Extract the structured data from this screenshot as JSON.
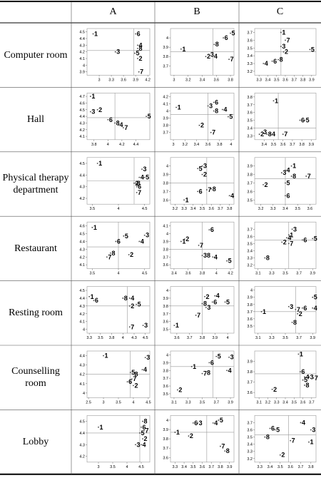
{
  "table": {
    "header": [
      "A",
      "B",
      "C"
    ],
    "rows": [
      "Computer room",
      "Hall",
      "Physical therapy department",
      "Restaurant",
      "Resting room",
      "Counselling room",
      "Lobby"
    ]
  },
  "chart_data": [
    {
      "type": "scatter",
      "labels": [
        "1",
        "2",
        "3",
        "4",
        "5",
        "6",
        "7",
        "8"
      ],
      "x": [
        2.85,
        3.95,
        3.4,
        3.95,
        3.88,
        3.9,
        3.98,
        3.95
      ],
      "values": [
        4.47,
        4.1,
        4.2,
        4.3,
        4.18,
        4.47,
        3.9,
        4.25
      ],
      "xlim": [
        2.7,
        4.25
      ],
      "ylim": [
        3.85,
        4.55
      ],
      "xticks": [
        3.0,
        3.3,
        3.6,
        3.9,
        4.2
      ],
      "yticks": [
        3.9,
        4.0,
        4.1,
        4.2,
        4.3,
        4.4,
        4.5
      ],
      "vline": 3.85,
      "hline": 4.22
    },
    {
      "type": "scatter",
      "labels": [
        "1",
        "2",
        "3",
        "4",
        "5",
        "6",
        "7",
        "8"
      ],
      "x": [
        3.1,
        3.45,
        3.5,
        3.55,
        3.8,
        3.7,
        3.78,
        3.57
      ],
      "values": [
        3.88,
        3.8,
        3.82,
        3.8,
        4.05,
        4.0,
        3.77,
        3.93
      ],
      "xlim": [
        2.95,
        3.85
      ],
      "ylim": [
        3.6,
        4.1
      ],
      "xticks": [
        3.0,
        3.2,
        3.4,
        3.6,
        3.8
      ],
      "yticks": [
        3.7,
        3.8,
        3.9,
        4.0
      ],
      "vline": 3.55,
      "hline": 3.85
    },
    {
      "type": "scatter",
      "labels": [
        "1",
        "2",
        "3",
        "4",
        "5",
        "6",
        "7",
        "8"
      ],
      "x": [
        3.55,
        3.58,
        3.55,
        3.35,
        3.88,
        3.45,
        3.6,
        3.52
      ],
      "values": [
        3.7,
        3.45,
        3.52,
        3.3,
        3.48,
        3.33,
        3.6,
        3.35
      ],
      "xlim": [
        3.25,
        3.95
      ],
      "ylim": [
        3.15,
        3.75
      ],
      "xticks": [
        3.3,
        3.4,
        3.5,
        3.6,
        3.7,
        3.8,
        3.9
      ],
      "yticks": [
        3.2,
        3.3,
        3.4,
        3.5,
        3.6,
        3.7
      ],
      "vline": 3.55,
      "hline": 3.45
    },
    {
      "type": "scatter",
      "labels": [
        "1",
        "2",
        "3",
        "4",
        "5",
        "6",
        "7",
        "8"
      ],
      "x": [
        3.75,
        3.85,
        3.75,
        4.15,
        4.55,
        4.0,
        4.22,
        4.1
      ],
      "values": [
        4.7,
        4.5,
        4.47,
        4.27,
        4.4,
        4.35,
        4.23,
        4.3
      ],
      "xlim": [
        3.7,
        4.6
      ],
      "ylim": [
        4.05,
        4.75
      ],
      "xticks": [
        3.8,
        4.0,
        4.2,
        4.4
      ],
      "yticks": [
        4.1,
        4.2,
        4.3,
        4.4,
        4.5,
        4.6,
        4.7
      ],
      "vline": 4.1,
      "hline": 4.38
    },
    {
      "type": "scatter",
      "labels": [
        "1",
        "2",
        "3",
        "4",
        "5",
        "6",
        "7",
        "8"
      ],
      "x": [
        3.05,
        3.45,
        3.6,
        3.85,
        3.95,
        3.7,
        3.65,
        3.7
      ],
      "values": [
        4.05,
        3.8,
        4.07,
        4.02,
        3.92,
        4.12,
        3.7,
        4.0
      ],
      "xlim": [
        2.95,
        4.05
      ],
      "ylim": [
        3.6,
        4.25
      ],
      "xticks": [
        3.0,
        3.2,
        3.4,
        3.6,
        3.8,
        4.0
      ],
      "yticks": [
        3.7,
        3.8,
        3.9,
        4.0,
        4.1,
        4.2
      ],
      "vline": 3.6,
      "hline": 3.95
    },
    {
      "type": "scatter",
      "labels": [
        "1",
        "2",
        "3",
        "4",
        "5",
        "6",
        "7",
        "8"
      ],
      "x": [
        3.5,
        3.35,
        3.38,
        3.47,
        3.83,
        3.78,
        3.6,
        3.43
      ],
      "values": [
        3.75,
        3.32,
        3.35,
        3.32,
        3.5,
        3.5,
        3.32,
        3.32
      ],
      "xlim": [
        3.3,
        3.95
      ],
      "ylim": [
        3.25,
        3.85
      ],
      "xticks": [
        3.4,
        3.5,
        3.6,
        3.7,
        3.8,
        3.9
      ],
      "yticks": [
        3.3,
        3.4,
        3.5,
        3.6,
        3.7,
        3.8
      ],
      "vline": 3.55,
      "hline": 3.4
    },
    {
      "type": "scatter",
      "labels": [
        "1",
        "2",
        "3",
        "4",
        "5",
        "6",
        "7",
        "8"
      ],
      "x": [
        3.6,
        4.3,
        4.45,
        4.4,
        4.5,
        4.35,
        4.35,
        4.33
      ],
      "values": [
        4.5,
        4.33,
        4.45,
        4.38,
        4.38,
        4.3,
        4.25,
        4.33
      ],
      "xlim": [
        3.4,
        4.6
      ],
      "ylim": [
        4.15,
        4.55
      ],
      "xticks": [
        3.5,
        4.0,
        4.5
      ],
      "yticks": [
        4.2,
        4.3,
        4.4,
        4.5
      ],
      "vline": 4.3,
      "hline": 4.35
    },
    {
      "type": "scatter",
      "labels": [
        "1",
        "2",
        "3",
        "4",
        "5",
        "6",
        "7",
        "8"
      ],
      "x": [
        3.3,
        3.5,
        3.5,
        3.8,
        3.45,
        3.45,
        3.55,
        3.6
      ],
      "values": [
        3.6,
        3.9,
        4.0,
        3.65,
        3.97,
        3.7,
        3.72,
        3.73
      ],
      "xlim": [
        3.15,
        3.85
      ],
      "ylim": [
        3.55,
        4.1
      ],
      "xticks": [
        3.2,
        3.3,
        3.4,
        3.5,
        3.6,
        3.7,
        3.8
      ],
      "yticks": [
        3.6,
        3.7,
        3.8,
        3.9,
        4.0
      ],
      "vline": 3.55,
      "hline": 3.8
    },
    {
      "type": "scatter",
      "labels": [
        "1",
        "2",
        "3",
        "4",
        "5",
        "6",
        "7",
        "8"
      ],
      "x": [
        3.45,
        3.22,
        3.37,
        3.4,
        3.4,
        3.4,
        3.57,
        3.45
      ],
      "values": [
        3.9,
        3.68,
        3.82,
        3.85,
        3.7,
        3.55,
        3.78,
        3.78
      ],
      "xlim": [
        3.15,
        3.65
      ],
      "ylim": [
        3.45,
        4.0
      ],
      "xticks": [
        3.2,
        3.3,
        3.4,
        3.5,
        3.6
      ],
      "yticks": [
        3.5,
        3.6,
        3.7,
        3.8,
        3.9
      ],
      "vline": 3.4,
      "hline": 3.75
    },
    {
      "type": "scatter",
      "labels": [
        "1",
        "2",
        "3",
        "4",
        "5",
        "6",
        "7",
        "8"
      ],
      "x": [
        3.5,
        4.2,
        4.5,
        4.4,
        4.1,
        3.95,
        3.78,
        3.85
      ],
      "values": [
        4.58,
        4.23,
        4.48,
        4.4,
        4.47,
        4.4,
        4.2,
        4.25
      ],
      "xlim": [
        3.4,
        4.6
      ],
      "ylim": [
        4.05,
        4.65
      ],
      "xticks": [
        3.5,
        4.0,
        4.5
      ],
      "yticks": [
        4.1,
        4.2,
        4.3,
        4.4,
        4.5,
        4.6
      ],
      "vline": 4.0,
      "hline": 4.33
    },
    {
      "type": "scatter",
      "labels": [
        "1",
        "2",
        "3",
        "4",
        "5",
        "6",
        "7",
        "8"
      ],
      "x": [
        3.5,
        3.55,
        3.8,
        3.95,
        4.15,
        3.9,
        3.75,
        3.85
      ],
      "values": [
        3.9,
        3.93,
        3.72,
        3.7,
        3.65,
        4.05,
        3.85,
        3.72
      ],
      "xlim": [
        3.35,
        4.25
      ],
      "ylim": [
        3.55,
        4.15
      ],
      "xticks": [
        3.4,
        3.6,
        3.8,
        4.0,
        4.2
      ],
      "yticks": [
        3.6,
        3.7,
        3.8,
        3.9,
        4.0,
        4.1
      ],
      "vline": 3.8,
      "hline": 3.8
    },
    {
      "type": "scatter",
      "labels": [
        "1",
        "2",
        "3",
        "4",
        "5",
        "6",
        "7",
        "8"
      ],
      "x": [
        3.55,
        3.45,
        3.6,
        3.52,
        3.9,
        3.75,
        3.55,
        3.2
      ],
      "values": [
        3.62,
        3.52,
        3.7,
        3.58,
        3.57,
        3.55,
        3.5,
        3.3
      ],
      "xlim": [
        3.05,
        3.95
      ],
      "ylim": [
        3.15,
        3.8
      ],
      "xticks": [
        3.1,
        3.3,
        3.5,
        3.7,
        3.9
      ],
      "yticks": [
        3.2,
        3.3,
        3.4,
        3.5,
        3.6,
        3.7
      ],
      "vline": 3.55,
      "hline": 3.55
    },
    {
      "type": "scatter",
      "labels": [
        "1",
        "2",
        "3",
        "4",
        "5",
        "6",
        "7",
        "8"
      ],
      "x": [
        3.25,
        4.15,
        4.45,
        4.15,
        4.3,
        3.35,
        4.15,
        4.0
      ],
      "values": [
        4.42,
        4.3,
        4.05,
        4.4,
        4.32,
        4.37,
        4.03,
        4.4
      ],
      "xlim": [
        3.2,
        4.6
      ],
      "ylim": [
        3.95,
        4.55
      ],
      "xticks": [
        {
          "value": 3.25,
          "label": "3.3"
        },
        3.5,
        {
          "value": 3.75,
          "label": "3.8"
        },
        4.0,
        {
          "value": 4.25,
          "label": "4.3"
        },
        4.5
      ],
      "yticks": [
        4.0,
        4.1,
        4.2,
        4.3,
        4.4,
        4.5
      ],
      "vline": 4.1,
      "hline": 4.3
    },
    {
      "type": "scatter",
      "labels": [
        "1",
        "2",
        "3",
        "4",
        "5",
        "6",
        "7",
        "8"
      ],
      "x": [
        3.58,
        3.82,
        3.83,
        3.9,
        3.98,
        3.88,
        3.75,
        3.8
      ],
      "values": [
        3.55,
        3.92,
        3.78,
        3.93,
        3.85,
        3.85,
        3.68,
        3.83
      ],
      "xlim": [
        3.55,
        4.05
      ],
      "ylim": [
        3.45,
        4.05
      ],
      "xticks": [
        3.6,
        3.7,
        3.8,
        3.9,
        4.0
      ],
      "yticks": [
        3.5,
        3.6,
        3.7,
        3.8,
        3.9,
        4.0
      ],
      "vline": 3.8,
      "hline": 3.8
    },
    {
      "type": "scatter",
      "labels": [
        "1",
        "2",
        "3",
        "4",
        "5",
        "6",
        "7",
        "8"
      ],
      "x": [
        3.15,
        3.68,
        3.55,
        3.9,
        3.9,
        3.75,
        3.65,
        3.6
      ],
      "values": [
        3.7,
        3.67,
        3.77,
        3.75,
        3.9,
        3.75,
        3.73,
        3.55
      ],
      "xlim": [
        3.05,
        3.95
      ],
      "ylim": [
        3.4,
        4.05
      ],
      "xticks": [
        3.1,
        3.3,
        3.5,
        3.7,
        3.9
      ],
      "yticks": [
        3.5,
        3.6,
        3.7,
        3.8,
        3.9,
        4.0
      ],
      "vline": 3.65,
      "hline": 3.7
    },
    {
      "type": "scatter",
      "labels": [
        "1",
        "2",
        "3",
        "4",
        "5",
        "6",
        "7",
        "8"
      ],
      "x": [
        3.0,
        4.0,
        4.4,
        4.3,
        3.9,
        3.8,
        3.95,
        4.0
      ],
      "values": [
        4.4,
        4.08,
        4.38,
        4.25,
        4.22,
        4.12,
        4.15,
        4.2
      ],
      "xlim": [
        2.45,
        4.55
      ],
      "ylim": [
        3.95,
        4.45
      ],
      "xticks": [
        2.5,
        3.0,
        3.5,
        4.0,
        4.5
      ],
      "yticks": [
        4.0,
        4.1,
        4.2,
        4.3,
        4.4
      ],
      "vline": 3.9,
      "hline": 4.2
    },
    {
      "type": "scatter",
      "labels": [
        "1",
        "2",
        "3",
        "4",
        "5",
        "6",
        "7",
        "8"
      ],
      "x": [
        3.35,
        3.15,
        3.88,
        3.85,
        3.7,
        3.6,
        3.5,
        3.55
      ],
      "values": [
        3.85,
        3.55,
        3.97,
        3.8,
        3.98,
        3.9,
        3.76,
        3.77
      ],
      "xlim": [
        3.05,
        3.95
      ],
      "ylim": [
        3.45,
        4.05
      ],
      "xticks": [
        3.1,
        3.3,
        3.5,
        3.7,
        3.9
      ],
      "yticks": [
        3.5,
        3.6,
        3.7,
        3.8,
        3.9,
        4.0
      ],
      "vline": 3.65,
      "hline": 3.85
    },
    {
      "type": "scatter",
      "labels": [
        "1",
        "2",
        "3",
        "4",
        "5",
        "6",
        "7",
        "8"
      ],
      "x": [
        3.55,
        3.25,
        3.67,
        3.62,
        3.6,
        3.57,
        3.72,
        3.62
      ],
      "values": [
        3.97,
        3.63,
        3.75,
        3.75,
        3.72,
        3.8,
        3.74,
        3.67
      ],
      "xlim": [
        3.05,
        3.75
      ],
      "ylim": [
        3.55,
        4.0
      ],
      "xticks": [
        3.1,
        3.2,
        3.3,
        3.4,
        3.5,
        3.6,
        3.7
      ],
      "yticks": [
        3.6,
        3.7,
        3.8,
        3.9
      ],
      "vline": 3.57,
      "hline": 3.78
    },
    {
      "type": "scatter",
      "labels": [
        "1",
        "2",
        "3",
        "4",
        "5",
        "6",
        "7",
        "8"
      ],
      "x": [
        3.0,
        4.55,
        4.3,
        4.5,
        4.45,
        4.5,
        4.6,
        4.55
      ],
      "values": [
        4.45,
        4.35,
        4.3,
        4.3,
        4.4,
        4.45,
        4.42,
        4.5
      ],
      "xlim": [
        2.6,
        4.8
      ],
      "ylim": [
        4.15,
        4.55
      ],
      "xticks": [
        3.0,
        3.5,
        4.0,
        4.5
      ],
      "yticks": [
        4.2,
        4.3,
        4.4,
        4.5
      ],
      "vline": 4.45,
      "hline": 4.4
    },
    {
      "type": "scatter",
      "labels": [
        "1",
        "2",
        "3",
        "4",
        "5",
        "6",
        "7",
        "8"
      ],
      "x": [
        3.3,
        3.45,
        3.55,
        3.72,
        3.78,
        3.5,
        3.8,
        3.85
      ],
      "values": [
        3.87,
        3.83,
        3.97,
        3.97,
        4.0,
        3.97,
        3.72,
        3.67
      ],
      "xlim": [
        3.25,
        3.95
      ],
      "ylim": [
        3.55,
        4.05
      ],
      "xticks": [
        3.3,
        3.4,
        3.5,
        3.6,
        3.7,
        3.8,
        3.9
      ],
      "yticks": [
        3.6,
        3.7,
        3.8,
        3.9,
        4.0
      ],
      "vline": 3.65,
      "hline": 3.87
    },
    {
      "type": "scatter",
      "labels": [
        "1",
        "2",
        "3",
        "4",
        "5",
        "6",
        "7",
        "8"
      ],
      "x": [
        3.78,
        3.5,
        3.8,
        3.7,
        3.45,
        3.4,
        3.6,
        3.35
      ],
      "values": [
        3.43,
        3.25,
        3.6,
        3.7,
        3.6,
        3.62,
        3.45,
        3.5
      ],
      "xlim": [
        3.25,
        3.85
      ],
      "ylim": [
        3.15,
        3.8
      ],
      "xticks": [
        3.3,
        3.4,
        3.5,
        3.6,
        3.7,
        3.8
      ],
      "yticks": [
        3.2,
        3.3,
        3.4,
        3.5,
        3.6,
        3.7
      ],
      "vline": 3.58,
      "hline": 3.53
    }
  ]
}
